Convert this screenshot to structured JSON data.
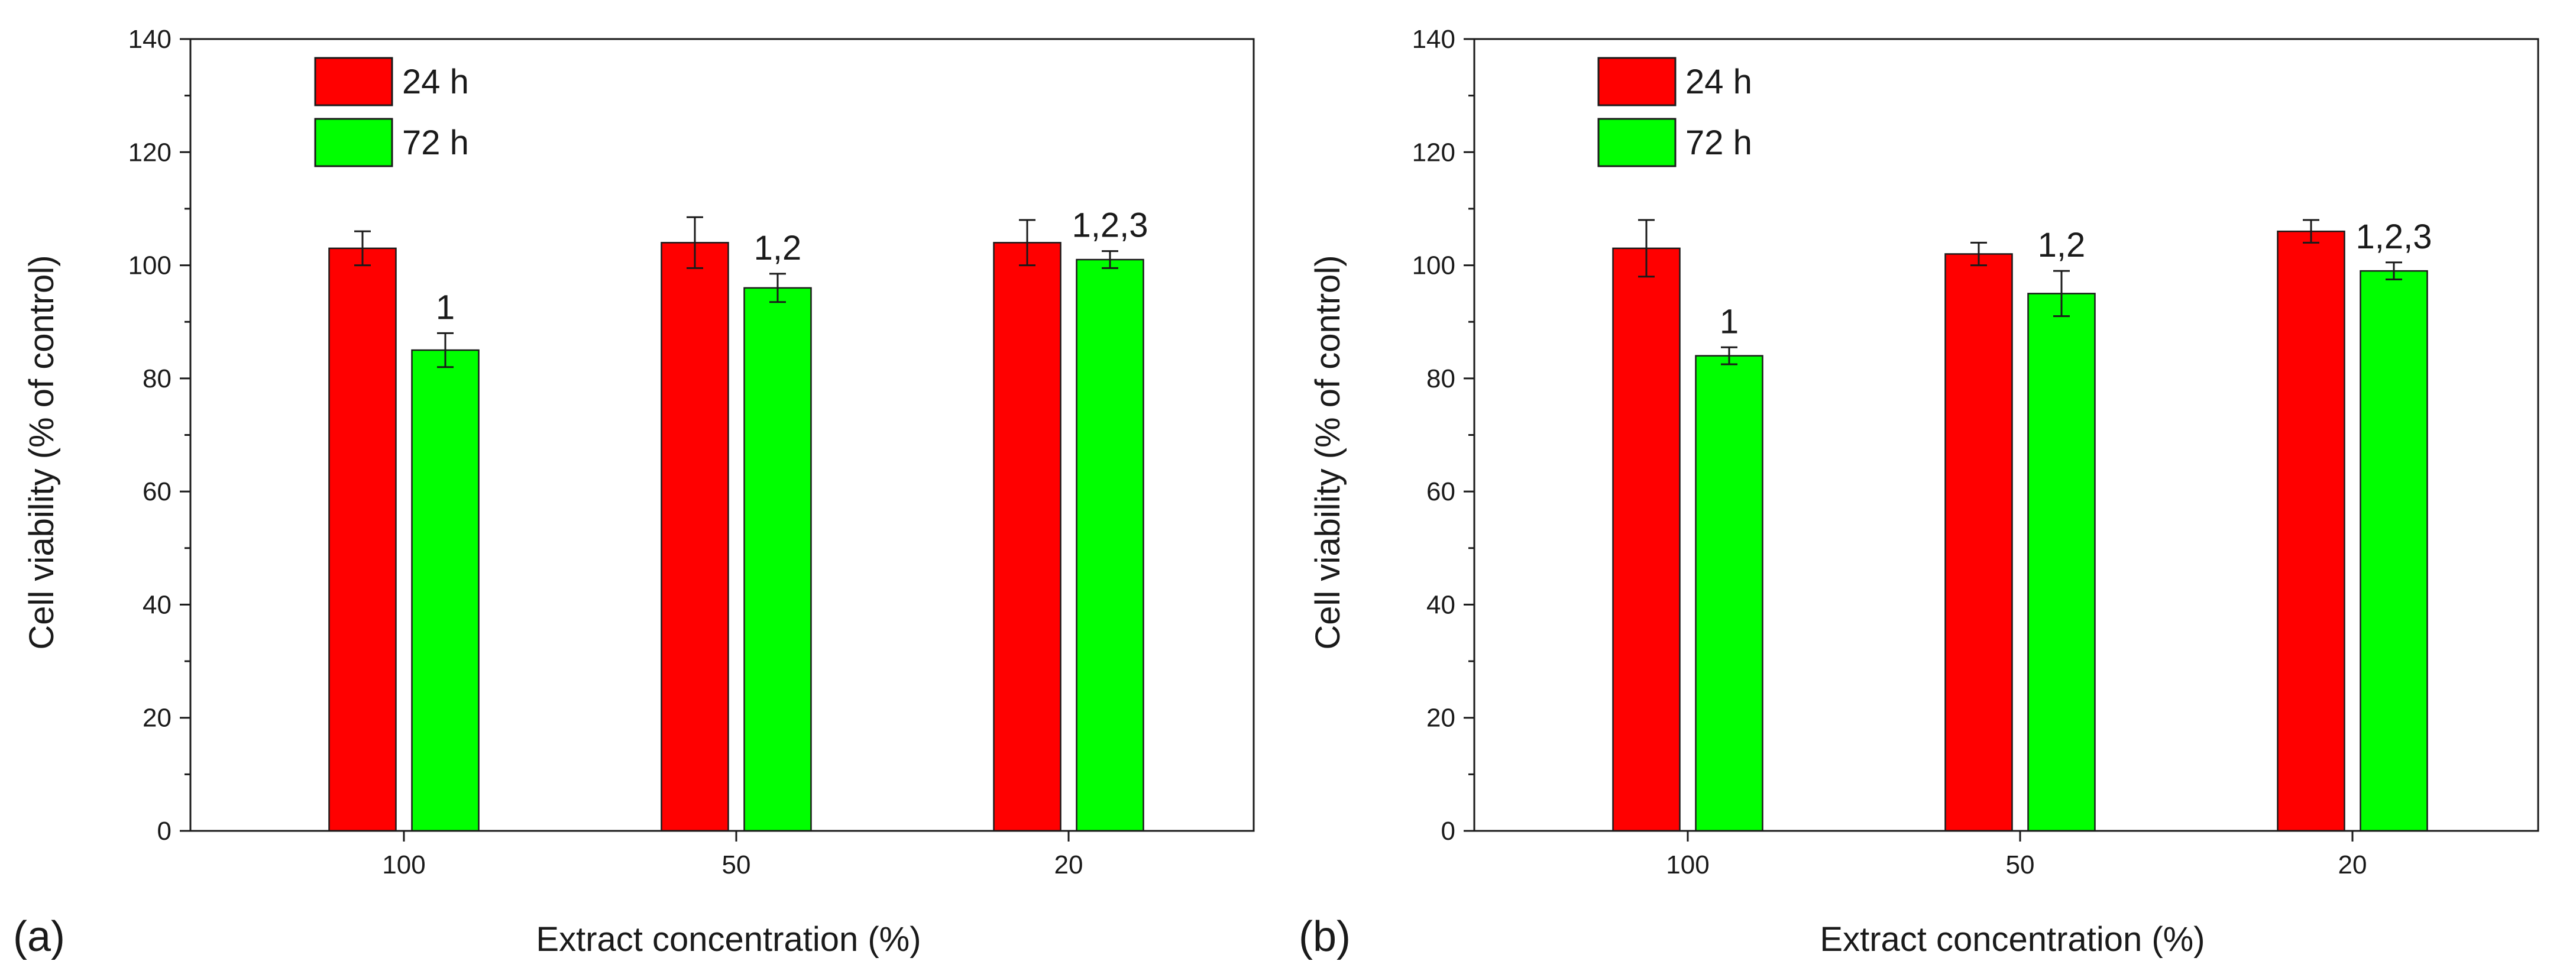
{
  "colors": {
    "series_24h": "#ff0000",
    "series_72h": "#00ff00",
    "axis": "#1a1a1a"
  },
  "chart_data": [
    {
      "type": "bar",
      "panel_label": "(a)",
      "title": "",
      "xlabel": "Extract concentration (%)",
      "ylabel": "Cell viability (% of control)",
      "ylim": [
        0,
        140
      ],
      "yticks": [
        "0",
        "20",
        "40",
        "60",
        "80",
        "100",
        "120",
        "140"
      ],
      "categories": [
        "100",
        "50",
        "20"
      ],
      "legend_position": "top-left",
      "series": [
        {
          "name": "24 h",
          "color": "#ff0000",
          "values": [
            103,
            104,
            104
          ],
          "errors": [
            3,
            4.5,
            4
          ]
        },
        {
          "name": "72 h",
          "color": "#00ff00",
          "values": [
            85,
            96,
            101
          ],
          "errors": [
            3,
            2.5,
            1.5
          ]
        }
      ],
      "annotations": [
        "1",
        "1,2",
        "1,2,3"
      ]
    },
    {
      "type": "bar",
      "panel_label": "(b)",
      "title": "",
      "xlabel": "Extract concentration (%)",
      "ylabel": "Cell viability (% of control)",
      "ylim": [
        0,
        140
      ],
      "yticks": [
        "0",
        "20",
        "40",
        "60",
        "80",
        "100",
        "120",
        "140"
      ],
      "categories": [
        "100",
        "50",
        "20"
      ],
      "legend_position": "top-left",
      "series": [
        {
          "name": "24 h",
          "color": "#ff0000",
          "values": [
            103,
            102,
            106
          ],
          "errors": [
            5,
            2,
            2
          ]
        },
        {
          "name": "72 h",
          "color": "#00ff00",
          "values": [
            84,
            95,
            99
          ],
          "errors": [
            1.5,
            4,
            1.5
          ]
        }
      ],
      "annotations": [
        "1",
        "1,2",
        "1,2,3"
      ]
    }
  ]
}
